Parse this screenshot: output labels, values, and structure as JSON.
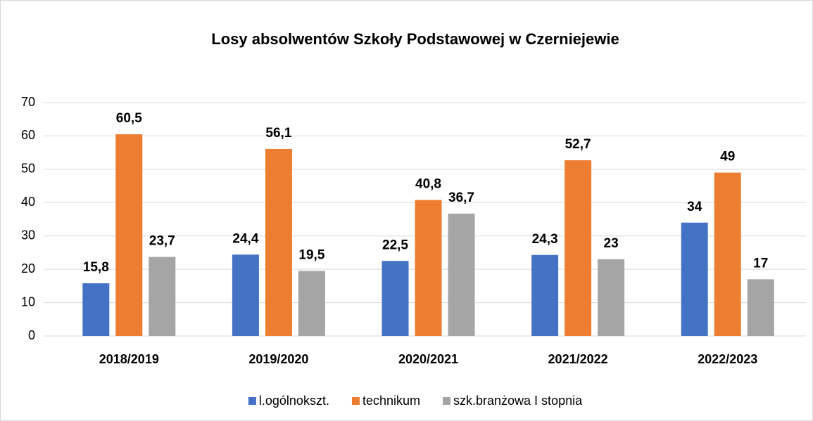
{
  "chart_data": {
    "type": "bar",
    "title": "Losy absolwentów Szkoły Podstawowej w Czerniejewie",
    "categories": [
      "2018/2019",
      "2019/2020",
      "2020/2021",
      "2021/2022",
      "2022/2023"
    ],
    "series": [
      {
        "name": "l.ogólnokszt.",
        "color": "#4472c4",
        "values": [
          15.8,
          24.4,
          22.5,
          24.3,
          34
        ],
        "value_labels": [
          "15,8",
          "24,4",
          "22,5",
          "24,3",
          "34"
        ]
      },
      {
        "name": "technikum",
        "color": "#ed7d31",
        "values": [
          60.5,
          56.1,
          40.8,
          52.7,
          49
        ],
        "value_labels": [
          "60,5",
          "56,1",
          "40,8",
          "52,7",
          "49"
        ]
      },
      {
        "name": "szk.branżowa I stopnia",
        "color": "#a5a5a5",
        "values": [
          23.7,
          19.5,
          36.7,
          23,
          17
        ],
        "value_labels": [
          "23,7",
          "19,5",
          "36,7",
          "23",
          "17"
        ]
      }
    ],
    "ylim": [
      0,
      70
    ],
    "yticks": [
      0,
      10,
      20,
      30,
      40,
      50,
      60,
      70
    ],
    "grid": true,
    "legend": "bottom"
  }
}
